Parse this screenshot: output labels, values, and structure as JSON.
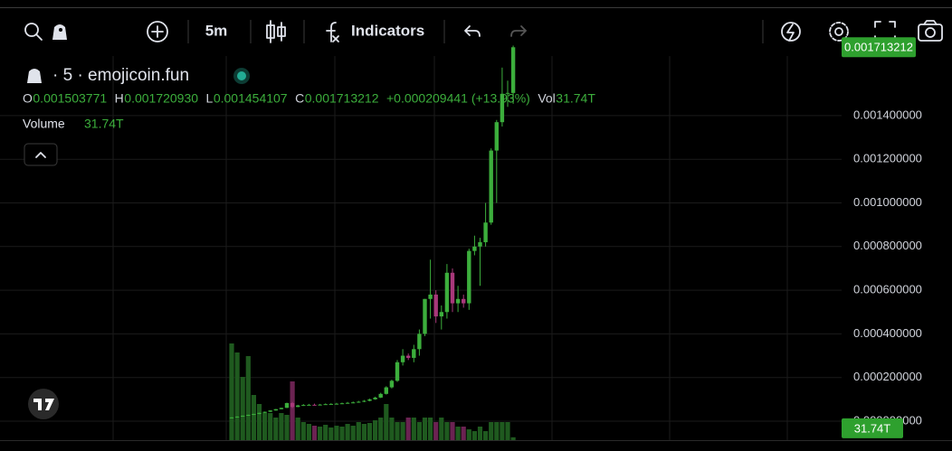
{
  "toolbar": {
    "interval": "5m",
    "indicators": "Indicators"
  },
  "chart_data": {
    "type": "candlestick",
    "title": "· 5 · emojicoin.fun",
    "open": [
      1.5e-05,
      1.7e-05,
      2.1e-05,
      2.5e-05,
      2.9e-05,
      3.3e-05,
      3.8e-05,
      4.3e-05,
      4.9e-05,
      5.5e-05,
      6.1e-05,
      8.3e-05,
      6.5e-05,
      7.2e-05,
      7.4e-05,
      7.5e-05,
      7.3e-05,
      7.6e-05,
      7.8e-05,
      7.9e-05,
      8e-05,
      8.2e-05,
      8.4e-05,
      8.6e-05,
      8.9e-05,
      9.3e-05,
      0.0001,
      0.000108,
      0.000125,
      0.000155,
      0.000185,
      0.00027,
      0.0003,
      0.00029,
      0.00033,
      0.0004,
      0.00056,
      0.00058,
      0.00048,
      0.0005,
      0.00068,
      0.00054,
      0.00056,
      0.00054,
      0.00078,
      0.0008,
      0.00082,
      0.00091,
      0.00124,
      0.00137,
      0.0015,
      0.001503771
    ],
    "high": [
      1.8e-05,
      2.2e-05,
      2.6e-05,
      3e-05,
      3.4e-05,
      3.9e-05,
      4.4e-05,
      5e-05,
      5.6e-05,
      6.2e-05,
      8.5e-05,
      8.8e-05,
      7.5e-05,
      7.8e-05,
      7.9e-05,
      8e-05,
      7.9e-05,
      8.1e-05,
      8.2e-05,
      8.4e-05,
      8.5e-05,
      8.8e-05,
      9e-05,
      9.3e-05,
      9.7e-05,
      0.000103,
      0.000112,
      0.00013,
      0.00016,
      0.00019,
      0.00028,
      0.00033,
      0.00031,
      0.00035,
      0.00042,
      0.00056,
      0.00074,
      0.0006,
      0.00053,
      0.00072,
      0.0007,
      0.00062,
      0.00058,
      0.00079,
      0.00085,
      0.00084,
      0.001,
      0.00125,
      0.00138,
      0.00162,
      0.00156,
      0.00172093
    ],
    "low": [
      1.3e-05,
      1.6e-05,
      2e-05,
      2.4e-05,
      2.8e-05,
      3.2e-05,
      3.7e-05,
      4.2e-05,
      4.8e-05,
      5.4e-05,
      6e-05,
      6e-05,
      6.4e-05,
      7e-05,
      7.2e-05,
      7.3e-05,
      7.2e-05,
      7.5e-05,
      7.6e-05,
      7.7e-05,
      7.8e-05,
      8e-05,
      8.2e-05,
      8.4e-05,
      8.7e-05,
      9.1e-05,
      9.8e-05,
      0.000106,
      0.000122,
      0.00015,
      0.00018,
      0.000255,
      0.00028,
      0.00027,
      0.0003,
      0.00039,
      0.00047,
      0.00045,
      0.00042,
      0.00047,
      0.0005,
      0.0005,
      0.00052,
      0.00051,
      0.00076,
      0.00062,
      0.0008,
      0.0009,
      0.001,
      0.00135,
      0.00144,
      0.001454107
    ],
    "close": [
      1.7e-05,
      2.1e-05,
      2.5e-05,
      2.9e-05,
      3.3e-05,
      3.8e-05,
      4.3e-05,
      4.9e-05,
      5.5e-05,
      6.1e-05,
      8.3e-05,
      6.5e-05,
      7.2e-05,
      7.4e-05,
      7.5e-05,
      7.3e-05,
      7.6e-05,
      7.8e-05,
      7.9e-05,
      8e-05,
      8.2e-05,
      8.4e-05,
      8.6e-05,
      8.9e-05,
      9.3e-05,
      0.0001,
      0.000108,
      0.000125,
      0.000155,
      0.000185,
      0.00027,
      0.0003,
      0.00029,
      0.00033,
      0.0004,
      0.00056,
      0.00058,
      0.00048,
      0.0005,
      0.00068,
      0.00054,
      0.00056,
      0.00054,
      0.00078,
      0.0008,
      0.00082,
      0.00091,
      0.00124,
      0.00137,
      0.0015,
      0.001504,
      0.001713212
    ],
    "volume": [
      1070,
      970,
      700,
      930,
      500,
      400,
      300,
      300,
      250,
      300,
      280,
      650,
      250,
      200,
      180,
      160,
      150,
      170,
      140,
      160,
      150,
      180,
      160,
      200,
      180,
      190,
      220,
      250,
      400,
      250,
      200,
      200,
      250,
      250,
      200,
      250,
      250,
      200,
      250,
      200,
      200,
      150,
      150,
      120,
      100,
      150,
      100,
      200,
      200,
      200,
      200,
      31.74
    ],
    "up_color": "#3cae3c",
    "down_color": "#a8387a",
    "volume_up_color": "#1f5a1f",
    "volume_down_color": "#6b2352",
    "ylim": [
      -8.7e-05,
      0.001673
    ],
    "volume_ylim": [
      0,
      1200
    ],
    "yticks": [
      {
        "value": 0,
        "label": "0.000000000"
      },
      {
        "value": 0.0002,
        "label": "0.000200000"
      },
      {
        "value": 0.0004,
        "label": "0.000400000"
      },
      {
        "value": 0.0006,
        "label": "0.000600000"
      },
      {
        "value": 0.0008,
        "label": "0.000800000"
      },
      {
        "value": 0.001,
        "label": "0.001000000"
      },
      {
        "value": 0.0012,
        "label": "0.001200000"
      },
      {
        "value": 0.0014,
        "label": "0.001400000"
      }
    ],
    "grid": true,
    "last_price_label": "0.001713212",
    "last_volume_label": "31.74T",
    "legend": {
      "items": [
        {
          "key": "O",
          "value": "0.001503771"
        },
        {
          "key": "H",
          "value": "0.001720930"
        },
        {
          "key": "L",
          "value": "0.001454107"
        },
        {
          "key": "C",
          "value": "0.001713212"
        }
      ],
      "change": "+0.000209441 (+13.93%)",
      "vol_key": "Vol",
      "vol_value": "31.74T"
    },
    "volume_title": "Volume",
    "volume_value": "31.74T"
  }
}
